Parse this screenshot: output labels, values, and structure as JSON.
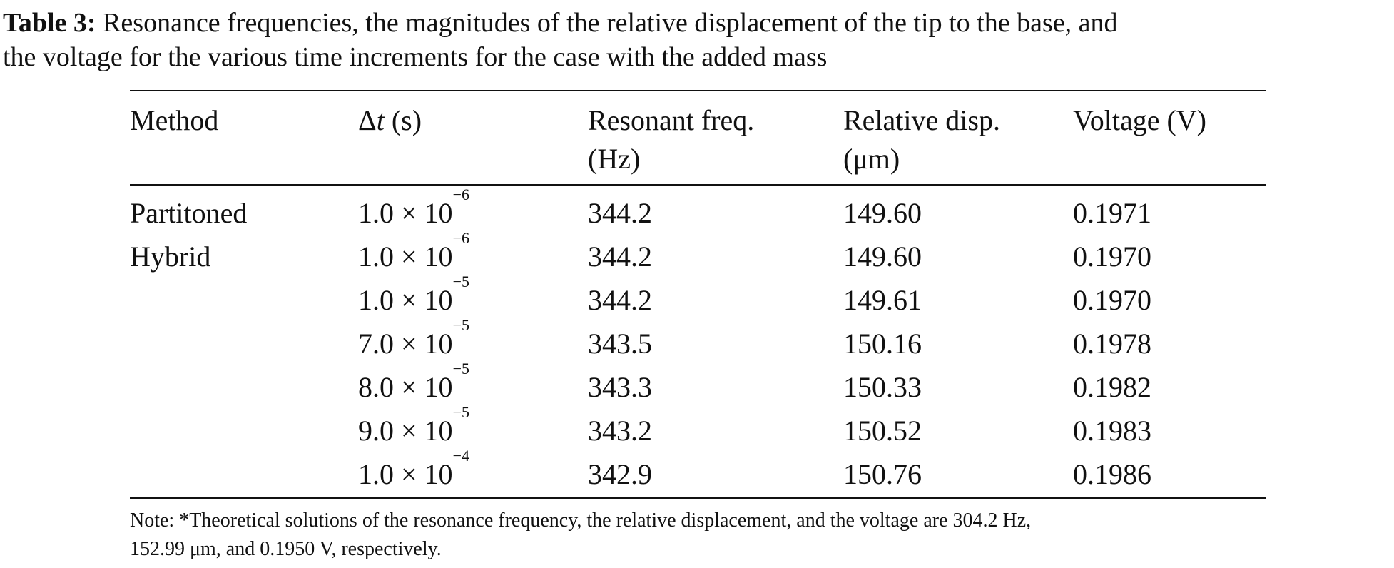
{
  "caption": {
    "label": "Table 3:",
    "line1": "Resonance frequencies, the magnitudes of the relative displacement of the tip to the base, and",
    "line2": "the voltage for the various time increments for the case with the added mass"
  },
  "table": {
    "headers": {
      "method": "Method",
      "dt_symbol": "Δ",
      "dt_var": "t",
      "dt_unit": " (s)",
      "freq_line1": "Resonant freq.",
      "freq_line2": "(Hz)",
      "disp_line1": "Relative disp.",
      "disp_line2": "(μm)",
      "voltage": "Voltage (V)"
    },
    "method_line1": "Partitoned",
    "method_line2": "Hybrid",
    "rows": [
      {
        "dt_base": "1.0 × 10",
        "dt_exp": "−6",
        "freq": "344.2",
        "disp": "149.60",
        "voltage": "0.1971"
      },
      {
        "dt_base": "1.0 × 10",
        "dt_exp": "−6",
        "freq": "344.2",
        "disp": "149.60",
        "voltage": "0.1970"
      },
      {
        "dt_base": "1.0 × 10",
        "dt_exp": "−5",
        "freq": "344.2",
        "disp": "149.61",
        "voltage": "0.1970"
      },
      {
        "dt_base": "7.0 × 10",
        "dt_exp": "−5",
        "freq": "343.5",
        "disp": "150.16",
        "voltage": "0.1978"
      },
      {
        "dt_base": "8.0 × 10",
        "dt_exp": "−5",
        "freq": "343.3",
        "disp": "150.33",
        "voltage": "0.1982"
      },
      {
        "dt_base": "9.0 × 10",
        "dt_exp": "−5",
        "freq": "343.2",
        "disp": "150.52",
        "voltage": "0.1983"
      },
      {
        "dt_base": "1.0 × 10",
        "dt_exp": "−4",
        "freq": "342.9",
        "disp": "150.76",
        "voltage": "0.1986"
      }
    ]
  },
  "note": {
    "line1": "Note: *Theoretical solutions of the resonance frequency, the relative displacement, and the voltage are 304.2 Hz,",
    "line2": "152.99 μm, and 0.1950 V, respectively."
  }
}
